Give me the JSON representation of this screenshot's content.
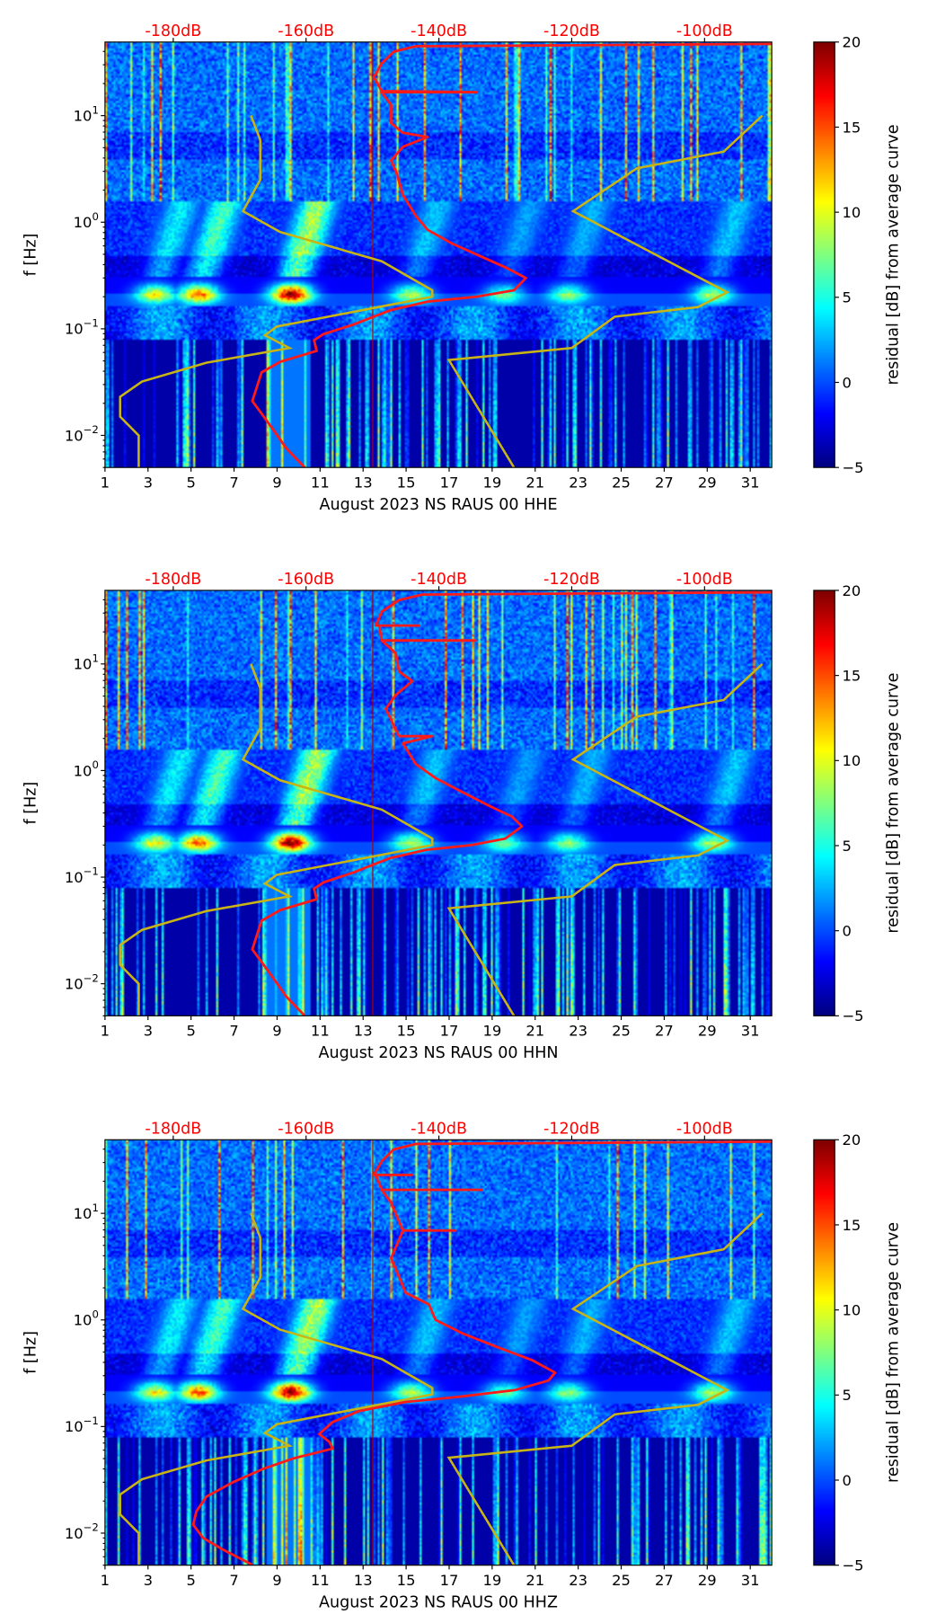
{
  "shared": {
    "ylabel": "f [Hz]",
    "x_ticks": [
      "1",
      "3",
      "5",
      "7",
      "9",
      "11",
      "13",
      "15",
      "17",
      "19",
      "21",
      "23",
      "25",
      "27",
      "29",
      "31"
    ],
    "xlim": [
      1,
      32
    ],
    "ylim": [
      0.005,
      49
    ],
    "y_ticks": [
      {
        "value": 0.01,
        "base": "10",
        "exp": "−2"
      },
      {
        "value": 0.1,
        "base": "10",
        "exp": "−1"
      },
      {
        "value": 1,
        "base": "10",
        "exp": "0"
      },
      {
        "value": 10,
        "base": "10",
        "exp": "1"
      }
    ],
    "top_ticks": [
      {
        "db": -180,
        "label": "-180dB"
      },
      {
        "db": -160,
        "label": "-160dB"
      },
      {
        "db": -140,
        "label": "-140dB"
      },
      {
        "db": -120,
        "label": "-120dB"
      },
      {
        "db": -100,
        "label": "-100dB"
      }
    ],
    "colorbar": {
      "label": "residual [dB] from average curve",
      "range": [
        -5,
        20
      ],
      "ticks": [
        "−5",
        "0",
        "5",
        "10",
        "15",
        "20"
      ]
    },
    "colors": {
      "psd": "#ff1a1a",
      "noise_model": "#c8b414",
      "top_tick": "#ff0000"
    },
    "low_noise_model": [
      [
        10,
        -168.3
      ],
      [
        5.9,
        -166.9
      ],
      [
        2.5,
        -166.9
      ],
      [
        1.27,
        -169.5
      ],
      [
        0.81,
        -163.9
      ],
      [
        0.43,
        -148.6
      ],
      [
        0.23,
        -141.0
      ],
      [
        0.2,
        -141.0
      ],
      [
        0.16,
        -149.1
      ],
      [
        0.105,
        -164.4
      ],
      [
        0.087,
        -166.2
      ],
      [
        0.066,
        -162.5
      ],
      [
        0.048,
        -175.0
      ],
      [
        0.032,
        -184.7
      ],
      [
        0.023,
        -188.0
      ],
      [
        0.015,
        -188.0
      ],
      [
        0.01,
        -185.2
      ],
      [
        0.005,
        -185.2
      ]
    ],
    "high_noise_model": [
      [
        10,
        -91.3
      ],
      [
        4.6,
        -97.1
      ],
      [
        3.2,
        -110.2
      ],
      [
        1.27,
        -119.8
      ],
      [
        0.22,
        -96.6
      ],
      [
        0.16,
        -101.0
      ],
      [
        0.13,
        -113.5
      ],
      [
        0.066,
        -120.0
      ],
      [
        0.051,
        -138.5
      ],
      [
        0.005,
        -128.7
      ]
    ]
  },
  "chart_data": [
    {
      "type": "heatmap",
      "xlabel": "August 2023 NS RAUS 00 HHE",
      "psd": [
        [
          47,
          -89.9
        ],
        [
          44.7,
          -143.5
        ],
        [
          39.8,
          -146.8
        ],
        [
          30.9,
          -148.6
        ],
        [
          22.9,
          -149.8
        ],
        [
          17.0,
          -148.6
        ],
        [
          16.6,
          -134.3
        ],
        [
          16.6,
          -148.6
        ],
        [
          12.6,
          -147.2
        ],
        [
          8.5,
          -147.2
        ],
        [
          6.9,
          -145.4
        ],
        [
          6.3,
          -141.7
        ],
        [
          5.1,
          -145.4
        ],
        [
          3.8,
          -147.2
        ],
        [
          2.8,
          -146.3
        ],
        [
          1.8,
          -145.4
        ],
        [
          1.15,
          -143.5
        ],
        [
          0.85,
          -141.7
        ],
        [
          0.63,
          -138.0
        ],
        [
          0.47,
          -133.4
        ],
        [
          0.37,
          -129.7
        ],
        [
          0.3,
          -126.9
        ],
        [
          0.23,
          -128.7
        ],
        [
          0.2,
          -134.3
        ],
        [
          0.18,
          -141.7
        ],
        [
          0.15,
          -147.2
        ],
        [
          0.11,
          -152.8
        ],
        [
          0.089,
          -157.4
        ],
        [
          0.078,
          -158.8
        ],
        [
          0.062,
          -158.4
        ],
        [
          0.049,
          -163.9
        ],
        [
          0.039,
          -166.7
        ],
        [
          0.021,
          -168.1
        ],
        [
          0.016,
          -166.7
        ],
        [
          0.011,
          -164.8
        ],
        [
          0.0076,
          -163.0
        ],
        [
          0.005,
          -160.2
        ]
      ]
    },
    {
      "type": "heatmap",
      "xlabel": "August 2023 NS RAUS 00 HHN",
      "psd": [
        [
          47,
          -89.9
        ],
        [
          44.7,
          -142.5
        ],
        [
          39.8,
          -146.0
        ],
        [
          30.9,
          -148.6
        ],
        [
          22.9,
          -149.5
        ],
        [
          22.9,
          -143.0
        ],
        [
          22.9,
          -149.0
        ],
        [
          16.6,
          -148.6
        ],
        [
          16.6,
          -134.5
        ],
        [
          16.6,
          -148.6
        ],
        [
          12.6,
          -146.5
        ],
        [
          8.5,
          -146.0
        ],
        [
          6.9,
          -144.0
        ],
        [
          5.1,
          -146.5
        ],
        [
          3.8,
          -148.0
        ],
        [
          2.1,
          -146.0
        ],
        [
          2.1,
          -141.0
        ],
        [
          1.8,
          -145.4
        ],
        [
          1.15,
          -143.5
        ],
        [
          0.85,
          -140.5
        ],
        [
          0.63,
          -136.5
        ],
        [
          0.47,
          -132.5
        ],
        [
          0.37,
          -129.0
        ],
        [
          0.3,
          -127.5
        ],
        [
          0.23,
          -130.0
        ],
        [
          0.2,
          -135.0
        ],
        [
          0.18,
          -142.0
        ],
        [
          0.15,
          -147.5
        ],
        [
          0.11,
          -153.0
        ],
        [
          0.089,
          -157.4
        ],
        [
          0.078,
          -158.8
        ],
        [
          0.062,
          -158.4
        ],
        [
          0.049,
          -163.9
        ],
        [
          0.039,
          -166.7
        ],
        [
          0.021,
          -168.1
        ],
        [
          0.016,
          -166.7
        ],
        [
          0.011,
          -164.8
        ],
        [
          0.0076,
          -163.0
        ],
        [
          0.005,
          -160.2
        ]
      ]
    },
    {
      "type": "heatmap",
      "xlabel": "August 2023 NS RAUS 00 HHZ",
      "psd": [
        [
          47,
          -89.9
        ],
        [
          44.7,
          -143.5
        ],
        [
          39.8,
          -146.8
        ],
        [
          30.9,
          -148.6
        ],
        [
          22.9,
          -149.8
        ],
        [
          22.9,
          -144.0
        ],
        [
          22.9,
          -149.5
        ],
        [
          16.6,
          -148.6
        ],
        [
          16.6,
          -133.5
        ],
        [
          16.6,
          -148.6
        ],
        [
          12.6,
          -147.2
        ],
        [
          6.9,
          -145.4
        ],
        [
          6.9,
          -137.5
        ],
        [
          6.9,
          -145.4
        ],
        [
          3.8,
          -147.2
        ],
        [
          2.8,
          -146.3
        ],
        [
          1.8,
          -145.0
        ],
        [
          1.4,
          -141.5
        ],
        [
          1.0,
          -140.5
        ],
        [
          0.75,
          -136.5
        ],
        [
          0.55,
          -131.0
        ],
        [
          0.42,
          -126.0
        ],
        [
          0.32,
          -122.5
        ],
        [
          0.27,
          -123.5
        ],
        [
          0.22,
          -128.5
        ],
        [
          0.19,
          -137.0
        ],
        [
          0.17,
          -145.0
        ],
        [
          0.14,
          -152.0
        ],
        [
          0.11,
          -156.0
        ],
        [
          0.085,
          -158.0
        ],
        [
          0.072,
          -156.5
        ],
        [
          0.062,
          -156.0
        ],
        [
          0.05,
          -162.0
        ],
        [
          0.04,
          -166.5
        ],
        [
          0.03,
          -171.0
        ],
        [
          0.022,
          -175.0
        ],
        [
          0.016,
          -176.5
        ],
        [
          0.012,
          -177.0
        ],
        [
          0.009,
          -175.5
        ],
        [
          0.007,
          -172.5
        ],
        [
          0.005,
          -168.0
        ]
      ]
    }
  ]
}
